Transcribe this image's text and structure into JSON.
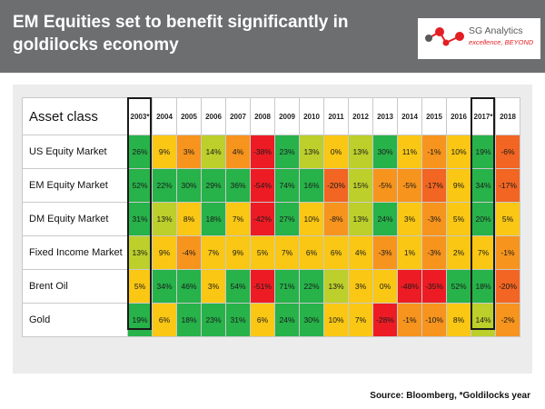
{
  "header": {
    "title": "EM Equities set to benefit significantly in goldilocks economy"
  },
  "logo": {
    "name": "SG Analytics",
    "tagline": "excellence, BEYOND"
  },
  "colors": {
    "header_bg": "#6d6e70",
    "panel_bg": "#ececec",
    "green": "#27b24a",
    "yellow_green": "#bccf2b",
    "yellow": "#f9c714",
    "orange": "#f7941d",
    "dark_orange": "#f26522",
    "red": "#ed1c24",
    "logo_red": "#e31e24"
  },
  "chart_data": {
    "type": "table",
    "corner_label": "Asset class",
    "columns": [
      "2003*",
      "2004",
      "2005",
      "2006",
      "2007",
      "2008",
      "2009",
      "2010",
      "2011",
      "2012",
      "2013",
      "2014",
      "2015",
      "2016",
      "2017*",
      "2018"
    ],
    "highlighted_columns": [
      "2003*",
      "2017*"
    ],
    "rows": [
      {
        "name": "US Equity Market",
        "values": [
          "26%",
          "9%",
          "3%",
          "14%",
          "4%",
          "-38%",
          "23%",
          "13%",
          "0%",
          "13%",
          "30%",
          "11%",
          "-1%",
          "10%",
          "19%",
          "-6%"
        ]
      },
      {
        "name": "EM Equity Market",
        "values": [
          "52%",
          "22%",
          "30%",
          "29%",
          "36%",
          "-54%",
          "74%",
          "16%",
          "-20%",
          "15%",
          "-5%",
          "-5%",
          "-17%",
          "9%",
          "34%",
          "-17%"
        ]
      },
      {
        "name": "DM Equity Market",
        "values": [
          "31%",
          "13%",
          "8%",
          "18%",
          "7%",
          "-42%",
          "27%",
          "10%",
          "-8%",
          "13%",
          "24%",
          "3%",
          "-3%",
          "5%",
          "20%",
          "5%"
        ]
      },
      {
        "name": "Fixed Income Market",
        "values": [
          "13%",
          "9%",
          "-4%",
          "7%",
          "9%",
          "5%",
          "7%",
          "6%",
          "6%",
          "4%",
          "-3%",
          "1%",
          "-3%",
          "2%",
          "7%",
          "-1%"
        ]
      },
      {
        "name": "Brent Oil",
        "values": [
          "5%",
          "34%",
          "46%",
          "3%",
          "54%",
          "-51%",
          "71%",
          "22%",
          "13%",
          "3%",
          "0%",
          "-48%",
          "-35%",
          "52%",
          "18%",
          "-20%"
        ]
      },
      {
        "name": "Gold",
        "values": [
          "19%",
          "6%",
          "18%",
          "23%",
          "31%",
          "6%",
          "24%",
          "30%",
          "10%",
          "7%",
          "-28%",
          "-1%",
          "-10%",
          "8%",
          "14%",
          "-2%"
        ]
      }
    ],
    "cell_colors": [
      [
        "green",
        "yellow",
        "orange",
        "yellow_green",
        "orange",
        "red",
        "green",
        "yellow_green",
        "yellow",
        "yellow_green",
        "green",
        "yellow",
        "orange",
        "yellow",
        "green",
        "dark_orange"
      ],
      [
        "green",
        "green",
        "green",
        "green",
        "green",
        "red",
        "green",
        "green",
        "dark_orange",
        "yellow_green",
        "orange",
        "orange",
        "dark_orange",
        "yellow",
        "green",
        "dark_orange"
      ],
      [
        "green",
        "yellow_green",
        "yellow",
        "green",
        "yellow",
        "red",
        "green",
        "yellow",
        "orange",
        "yellow_green",
        "green",
        "yellow",
        "orange",
        "yellow",
        "green",
        "yellow"
      ],
      [
        "yellow_green",
        "yellow",
        "orange",
        "yellow",
        "yellow",
        "yellow",
        "yellow",
        "yellow",
        "yellow",
        "yellow",
        "orange",
        "yellow",
        "orange",
        "yellow",
        "yellow",
        "orange"
      ],
      [
        "yellow",
        "green",
        "green",
        "yellow",
        "green",
        "red",
        "green",
        "green",
        "yellow_green",
        "yellow",
        "yellow",
        "red",
        "red",
        "green",
        "green",
        "dark_orange"
      ],
      [
        "green",
        "yellow",
        "green",
        "green",
        "green",
        "yellow",
        "green",
        "green",
        "yellow",
        "yellow",
        "red",
        "orange",
        "orange",
        "yellow",
        "yellow_green",
        "orange"
      ]
    ]
  },
  "source": "Source: Bloomberg, *Goldilocks year"
}
